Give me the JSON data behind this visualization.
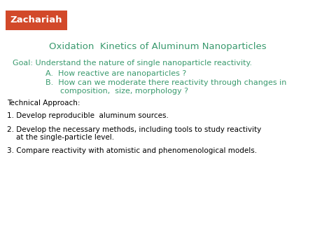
{
  "title": "Oxidation  Kinetics of Aluminum Nanoparticles",
  "title_color": "#3a9a6e",
  "title_fontsize": 9.5,
  "background_color": "#ffffff",
  "zachariah_label": "Zachariah",
  "zachariah_bg": "#d2492a",
  "zachariah_text_color": "#ffffff",
  "zachariah_fontsize": 9.5,
  "goal_text": "Goal: Understand the nature of single nanoparticle reactivity.",
  "goal_color": "#3a9a6e",
  "goal_fontsize": 8.0,
  "item_A": "A.  How reactive are nanoparticles ?",
  "item_B_line1": "B.  How can we moderate there reactivity through changes in",
  "item_B_line2": "      composition,  size, morphology ?",
  "item_color": "#3a9a6e",
  "item_fontsize": 8.0,
  "tech_header": "Technical Approach:",
  "tech_color": "#000000",
  "tech_fontsize": 7.5,
  "point1": "1. Develop reproducible  aluminum sources.",
  "point2_line1": "2. Develop the necessary methods, including tools to study reactivity",
  "point2_line2": "    at the single-particle level.",
  "point3": "3. Compare reactivity with atomistic and phenomenological models.",
  "point_color": "#000000",
  "point_fontsize": 7.5
}
